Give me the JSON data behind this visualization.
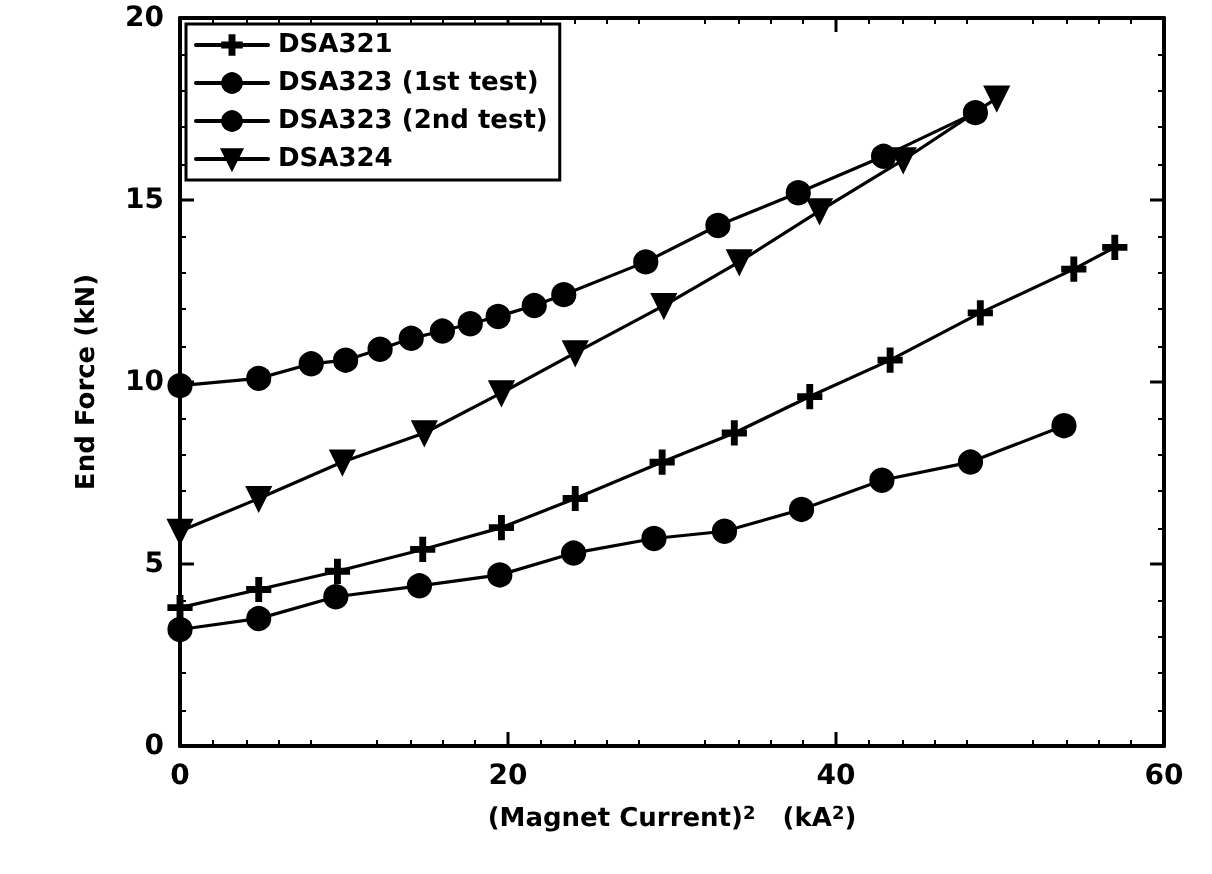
{
  "chart_data": {
    "type": "line",
    "xlabel": "(Magnet Current)$^{2}$   (kA$^{2}$)",
    "ylabel": "End Force (kN)",
    "xlim": [
      0,
      60
    ],
    "xticks": [
      0,
      20,
      40,
      60
    ],
    "ylim": [
      0,
      20
    ],
    "yticks": [
      0,
      5,
      10,
      15,
      20
    ],
    "grid": false,
    "legend": "top left",
    "line_style": "solid",
    "series": [
      {
        "name": "DSA321",
        "color": "#000000",
        "marker": "cross",
        "x": [
          0,
          4.8,
          9.6,
          14.8,
          19.6,
          24.1,
          29.4,
          33.8,
          38.4,
          43.3,
          48.8,
          54.5,
          57
        ],
        "values": [
          3.8,
          4.3,
          4.8,
          5.4,
          6.0,
          6.8,
          7.8,
          8.6,
          9.6,
          10.6,
          11.9,
          13.1,
          13.7
        ]
      },
      {
        "name": "DSA323 (1st test)",
        "color": "#000000",
        "marker": "circle",
        "x": [
          0,
          4.8,
          9.5,
          14.6,
          19.5,
          24,
          28.9,
          33.2,
          37.9,
          42.8,
          48.2,
          53.9
        ],
        "values": [
          3.2,
          3.5,
          4.1,
          4.4,
          4.7,
          5.3,
          5.7,
          5.9,
          6.5,
          7.3,
          7.8,
          8.8
        ]
      },
      {
        "name": "DSA323 (2nd test)",
        "color": "#000000",
        "marker": "circle",
        "x": [
          0,
          4.8,
          8.0,
          10.1,
          12.2,
          14.1,
          16,
          17.7,
          19.4,
          21.6,
          23.4,
          28.4,
          32.8,
          37.7,
          42.9,
          48.5
        ],
        "values": [
          9.9,
          10.1,
          10.5,
          10.6,
          10.9,
          11.2,
          11.4,
          11.6,
          11.8,
          12.1,
          12.4,
          13.3,
          14.3,
          15.2,
          16.2,
          17.4
        ]
      },
      {
        "name": "DSA324",
        "color": "#000000",
        "marker": "triangle",
        "x": [
          0,
          4.8,
          9.9,
          14.9,
          19.6,
          24.1,
          29.5,
          34.1,
          39,
          44.1,
          49.8
        ],
        "values": [
          5.9,
          6.8,
          7.8,
          8.6,
          9.7,
          10.8,
          12.1,
          13.3,
          14.7,
          16.1,
          17.8
        ]
      }
    ]
  }
}
